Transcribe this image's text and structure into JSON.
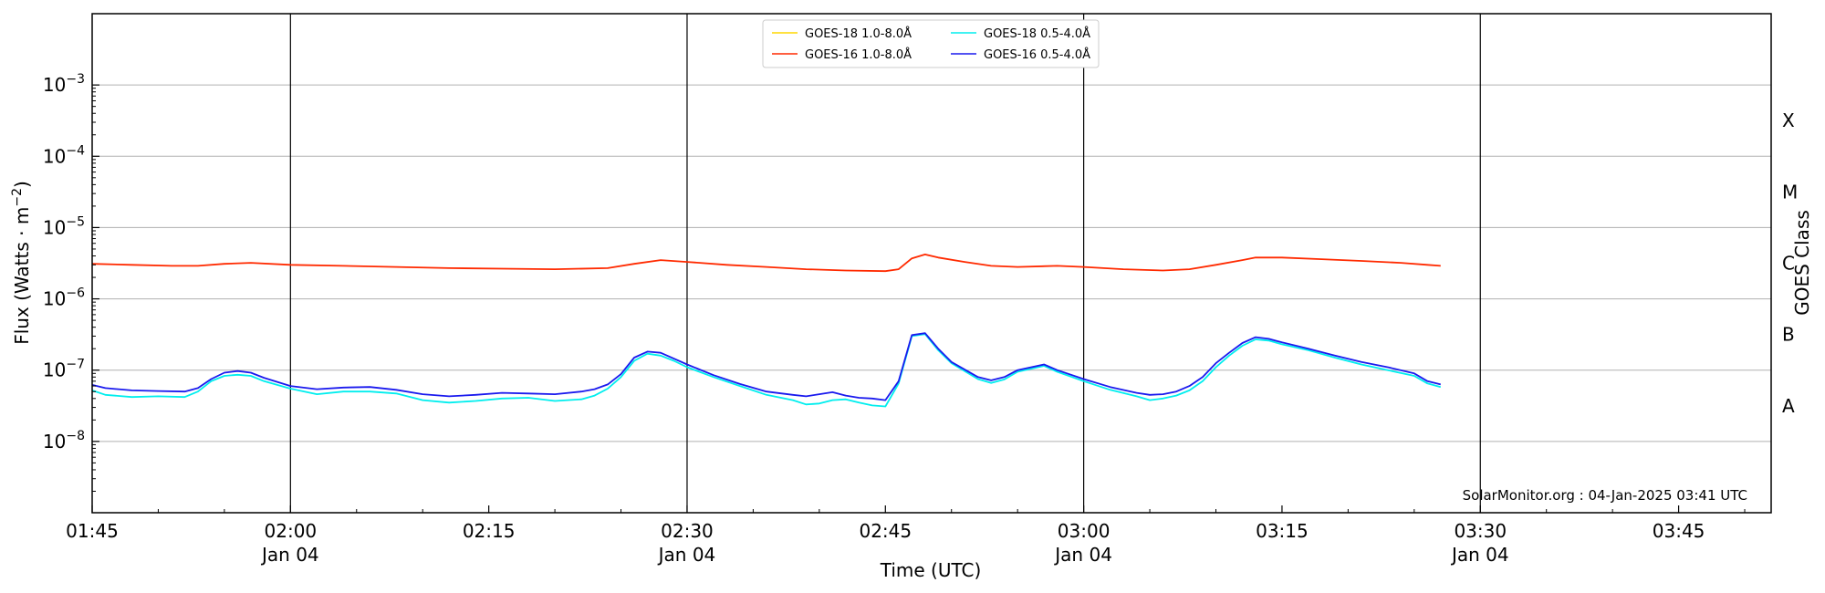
{
  "chart_data": {
    "type": "line",
    "xlabel": "Time (UTC)",
    "ylabel_prefix": "Flux (Watts · m",
    "ylabel_exp": "−2",
    "ylabel_suffix": ")",
    "right_label": "GOES Class",
    "y_scale": "log",
    "ylim": [
      1e-09,
      0.01
    ],
    "xlim": [
      "01:45",
      "03:52"
    ],
    "grid": "horizontal",
    "legend_position": "top-center",
    "credit": "SolarMonitor.org : 04-Jan-2025 03:41 UTC",
    "x_ticks": [
      {
        "time": "01:45",
        "label": "01:45",
        "sub": ""
      },
      {
        "time": "02:00",
        "label": "02:00",
        "sub": "Jan 04"
      },
      {
        "time": "02:15",
        "label": "02:15",
        "sub": ""
      },
      {
        "time": "02:30",
        "label": "02:30",
        "sub": "Jan 04"
      },
      {
        "time": "02:45",
        "label": "02:45",
        "sub": ""
      },
      {
        "time": "03:00",
        "label": "03:00",
        "sub": "Jan 04"
      },
      {
        "time": "03:15",
        "label": "03:15",
        "sub": ""
      },
      {
        "time": "03:30",
        "label": "03:30",
        "sub": "Jan 04"
      },
      {
        "time": "03:45",
        "label": "03:45",
        "sub": ""
      }
    ],
    "vertical_lines": [
      "02:00",
      "02:30",
      "03:00",
      "03:30"
    ],
    "y_ticks": [
      {
        "value": 1e-08,
        "base": "10",
        "exp": "−8"
      },
      {
        "value": 1e-07,
        "base": "10",
        "exp": "−7"
      },
      {
        "value": 1e-06,
        "base": "10",
        "exp": "−6"
      },
      {
        "value": 1e-05,
        "base": "10",
        "exp": "−5"
      },
      {
        "value": 0.0001,
        "base": "10",
        "exp": "−4"
      },
      {
        "value": 0.001,
        "base": "10",
        "exp": "−3"
      }
    ],
    "goes_classes": [
      {
        "label": "A",
        "value": 3.16e-08
      },
      {
        "label": "B",
        "value": 3.16e-07
      },
      {
        "label": "C",
        "value": 3.16e-06
      },
      {
        "label": "M",
        "value": 3.16e-05
      },
      {
        "label": "X",
        "value": 0.000316
      }
    ],
    "series": [
      {
        "name": "GOES-18 1.0-8.0Å",
        "color": "#ffd700",
        "points": []
      },
      {
        "name": "GOES-16 1.0-8.0Å",
        "color": "#ff2a00",
        "points": [
          [
            "01:45",
            3.1e-06
          ],
          [
            "01:48",
            3e-06
          ],
          [
            "01:51",
            2.9e-06
          ],
          [
            "01:53",
            2.9e-06
          ],
          [
            "01:55",
            3.1e-06
          ],
          [
            "01:57",
            3.2e-06
          ],
          [
            "02:00",
            3e-06
          ],
          [
            "02:04",
            2.9e-06
          ],
          [
            "02:08",
            2.8e-06
          ],
          [
            "02:12",
            2.7e-06
          ],
          [
            "02:16",
            2.65e-06
          ],
          [
            "02:20",
            2.6e-06
          ],
          [
            "02:24",
            2.7e-06
          ],
          [
            "02:26",
            3.1e-06
          ],
          [
            "02:28",
            3.5e-06
          ],
          [
            "02:30",
            3.3e-06
          ],
          [
            "02:33",
            3e-06
          ],
          [
            "02:36",
            2.8e-06
          ],
          [
            "02:39",
            2.6e-06
          ],
          [
            "02:42",
            2.5e-06
          ],
          [
            "02:45",
            2.45e-06
          ],
          [
            "02:46",
            2.6e-06
          ],
          [
            "02:47",
            3.7e-06
          ],
          [
            "02:48",
            4.2e-06
          ],
          [
            "02:49",
            3.8e-06
          ],
          [
            "02:51",
            3.3e-06
          ],
          [
            "02:53",
            2.9e-06
          ],
          [
            "02:55",
            2.8e-06
          ],
          [
            "02:58",
            2.9e-06
          ],
          [
            "03:00",
            2.8e-06
          ],
          [
            "03:03",
            2.6e-06
          ],
          [
            "03:06",
            2.5e-06
          ],
          [
            "03:08",
            2.6e-06
          ],
          [
            "03:10",
            3e-06
          ],
          [
            "03:12",
            3.5e-06
          ],
          [
            "03:13",
            3.8e-06
          ],
          [
            "03:15",
            3.8e-06
          ],
          [
            "03:18",
            3.6e-06
          ],
          [
            "03:21",
            3.4e-06
          ],
          [
            "03:24",
            3.2e-06
          ],
          [
            "03:26",
            3e-06
          ],
          [
            "03:27",
            2.9e-06
          ]
        ]
      },
      {
        "name": "GOES-18 0.5-4.0Å",
        "color": "#00eeee",
        "points": [
          [
            "01:45",
            5.2e-08
          ],
          [
            "01:46",
            4.5e-08
          ],
          [
            "01:48",
            4.2e-08
          ],
          [
            "01:50",
            4.3e-08
          ],
          [
            "01:52",
            4.2e-08
          ],
          [
            "01:53",
            5e-08
          ],
          [
            "01:54",
            7e-08
          ],
          [
            "01:55",
            8.3e-08
          ],
          [
            "01:56",
            8.6e-08
          ],
          [
            "01:57",
            8.3e-08
          ],
          [
            "01:58",
            7e-08
          ],
          [
            "02:00",
            5.5e-08
          ],
          [
            "02:02",
            4.6e-08
          ],
          [
            "02:04",
            5e-08
          ],
          [
            "02:06",
            5e-08
          ],
          [
            "02:08",
            4.7e-08
          ],
          [
            "02:10",
            3.8e-08
          ],
          [
            "02:12",
            3.5e-08
          ],
          [
            "02:14",
            3.7e-08
          ],
          [
            "02:16",
            4e-08
          ],
          [
            "02:18",
            4.1e-08
          ],
          [
            "02:20",
            3.7e-08
          ],
          [
            "02:22",
            3.9e-08
          ],
          [
            "02:23",
            4.4e-08
          ],
          [
            "02:24",
            5.5e-08
          ],
          [
            "02:25",
            8e-08
          ],
          [
            "02:26",
            1.35e-07
          ],
          [
            "02:27",
            1.7e-07
          ],
          [
            "02:28",
            1.6e-07
          ],
          [
            "02:29",
            1.35e-07
          ],
          [
            "02:30",
            1.1e-07
          ],
          [
            "02:32",
            8e-08
          ],
          [
            "02:34",
            6e-08
          ],
          [
            "02:36",
            4.5e-08
          ],
          [
            "02:38",
            3.8e-08
          ],
          [
            "02:39",
            3.3e-08
          ],
          [
            "02:40",
            3.4e-08
          ],
          [
            "02:41",
            3.8e-08
          ],
          [
            "02:42",
            3.9e-08
          ],
          [
            "02:43",
            3.5e-08
          ],
          [
            "02:44",
            3.2e-08
          ],
          [
            "02:45",
            3.1e-08
          ],
          [
            "02:46",
            6.5e-08
          ],
          [
            "02:47",
            3e-07
          ],
          [
            "02:48",
            3.2e-07
          ],
          [
            "02:49",
            1.9e-07
          ],
          [
            "02:50",
            1.25e-07
          ],
          [
            "02:52",
            7.5e-08
          ],
          [
            "02:53",
            6.6e-08
          ],
          [
            "02:54",
            7.4e-08
          ],
          [
            "02:55",
            9.5e-08
          ],
          [
            "02:57",
            1.15e-07
          ],
          [
            "02:58",
            9.5e-08
          ],
          [
            "03:00",
            7e-08
          ],
          [
            "03:02",
            5.3e-08
          ],
          [
            "03:04",
            4.3e-08
          ],
          [
            "03:05",
            3.8e-08
          ],
          [
            "03:06",
            4e-08
          ],
          [
            "03:07",
            4.4e-08
          ],
          [
            "03:08",
            5.2e-08
          ],
          [
            "03:09",
            7e-08
          ],
          [
            "03:10",
            1.1e-07
          ],
          [
            "03:11",
            1.6e-07
          ],
          [
            "03:12",
            2.2e-07
          ],
          [
            "03:13",
            2.7e-07
          ],
          [
            "03:14",
            2.6e-07
          ],
          [
            "03:15",
            2.3e-07
          ],
          [
            "03:17",
            1.9e-07
          ],
          [
            "03:19",
            1.5e-07
          ],
          [
            "03:21",
            1.2e-07
          ],
          [
            "03:23",
            1e-07
          ],
          [
            "03:25",
            8.3e-08
          ],
          [
            "03:26",
            6.5e-08
          ],
          [
            "03:27",
            5.8e-08
          ]
        ]
      },
      {
        "name": "GOES-16 0.5-4.0Å",
        "color": "#1a1aee",
        "points": [
          [
            "01:45",
            6.2e-08
          ],
          [
            "01:46",
            5.6e-08
          ],
          [
            "01:48",
            5.2e-08
          ],
          [
            "01:50",
            5.1e-08
          ],
          [
            "01:52",
            5e-08
          ],
          [
            "01:53",
            5.6e-08
          ],
          [
            "01:54",
            7.5e-08
          ],
          [
            "01:55",
            9.2e-08
          ],
          [
            "01:56",
            9.7e-08
          ],
          [
            "01:57",
            9.2e-08
          ],
          [
            "01:58",
            7.8e-08
          ],
          [
            "02:00",
            6e-08
          ],
          [
            "02:02",
            5.4e-08
          ],
          [
            "02:04",
            5.7e-08
          ],
          [
            "02:06",
            5.8e-08
          ],
          [
            "02:08",
            5.3e-08
          ],
          [
            "02:10",
            4.6e-08
          ],
          [
            "02:12",
            4.3e-08
          ],
          [
            "02:14",
            4.5e-08
          ],
          [
            "02:16",
            4.8e-08
          ],
          [
            "02:18",
            4.7e-08
          ],
          [
            "02:20",
            4.6e-08
          ],
          [
            "02:22",
            5e-08
          ],
          [
            "02:23",
            5.4e-08
          ],
          [
            "02:24",
            6.3e-08
          ],
          [
            "02:25",
            8.8e-08
          ],
          [
            "02:26",
            1.5e-07
          ],
          [
            "02:27",
            1.82e-07
          ],
          [
            "02:28",
            1.75e-07
          ],
          [
            "02:29",
            1.45e-07
          ],
          [
            "02:30",
            1.2e-07
          ],
          [
            "02:32",
            8.5e-08
          ],
          [
            "02:34",
            6.4e-08
          ],
          [
            "02:36",
            5e-08
          ],
          [
            "02:38",
            4.5e-08
          ],
          [
            "02:39",
            4.3e-08
          ],
          [
            "02:40",
            4.6e-08
          ],
          [
            "02:41",
            4.9e-08
          ],
          [
            "02:42",
            4.4e-08
          ],
          [
            "02:43",
            4.1e-08
          ],
          [
            "02:44",
            4e-08
          ],
          [
            "02:45",
            3.8e-08
          ],
          [
            "02:46",
            7e-08
          ],
          [
            "02:47",
            3.1e-07
          ],
          [
            "02:48",
            3.3e-07
          ],
          [
            "02:49",
            2e-07
          ],
          [
            "02:50",
            1.3e-07
          ],
          [
            "02:52",
            8e-08
          ],
          [
            "02:53",
            7.2e-08
          ],
          [
            "02:54",
            8e-08
          ],
          [
            "02:55",
            1e-07
          ],
          [
            "02:57",
            1.2e-07
          ],
          [
            "02:58",
            1e-07
          ],
          [
            "03:00",
            7.5e-08
          ],
          [
            "03:02",
            5.8e-08
          ],
          [
            "03:04",
            4.8e-08
          ],
          [
            "03:05",
            4.5e-08
          ],
          [
            "03:06",
            4.6e-08
          ],
          [
            "03:07",
            5e-08
          ],
          [
            "03:08",
            6e-08
          ],
          [
            "03:09",
            8e-08
          ],
          [
            "03:10",
            1.25e-07
          ],
          [
            "03:11",
            1.75e-07
          ],
          [
            "03:12",
            2.4e-07
          ],
          [
            "03:13",
            2.9e-07
          ],
          [
            "03:14",
            2.75e-07
          ],
          [
            "03:15",
            2.45e-07
          ],
          [
            "03:17",
            2e-07
          ],
          [
            "03:19",
            1.6e-07
          ],
          [
            "03:21",
            1.3e-07
          ],
          [
            "03:23",
            1.1e-07
          ],
          [
            "03:25",
            9e-08
          ],
          [
            "03:26",
            7e-08
          ],
          [
            "03:27",
            6.3e-08
          ]
        ]
      }
    ]
  }
}
